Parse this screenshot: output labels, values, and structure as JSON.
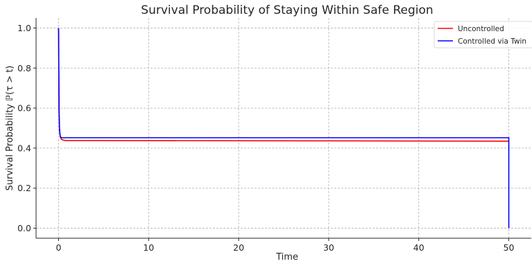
{
  "chart_data": {
    "type": "line",
    "title": "Survival Probability of Staying Within Safe Region",
    "xlabel": "Time",
    "ylabel": "Survival Probability ℙ(τ > t)",
    "xlim": [
      -2.5,
      52.5
    ],
    "ylim": [
      -0.05,
      1.05
    ],
    "xticks": [
      0,
      10,
      20,
      30,
      40,
      50
    ],
    "yticks": [
      0.0,
      0.2,
      0.4,
      0.6,
      0.8,
      1.0
    ],
    "ytick_labels": [
      "0.0",
      "0.2",
      "0.4",
      "0.6",
      "0.8",
      "1.0"
    ],
    "grid": true,
    "legend_position": "top-right",
    "series": [
      {
        "name": "Uncontrolled",
        "color": "#ff0000",
        "x": [
          0,
          0.05,
          0.1,
          0.15,
          0.2,
          0.3,
          0.5,
          0.8,
          50
        ],
        "y": [
          1.0,
          0.6,
          0.5,
          0.47,
          0.455,
          0.445,
          0.44,
          0.438,
          0.435
        ]
      },
      {
        "name": "Controlled via Twin",
        "color": "#0000ff",
        "x": [
          0,
          0.05,
          0.1,
          0.15,
          0.2,
          0.3,
          0.5,
          50,
          50
        ],
        "y": [
          1.0,
          0.6,
          0.5,
          0.47,
          0.458,
          0.452,
          0.452,
          0.452,
          0.0
        ]
      }
    ]
  }
}
